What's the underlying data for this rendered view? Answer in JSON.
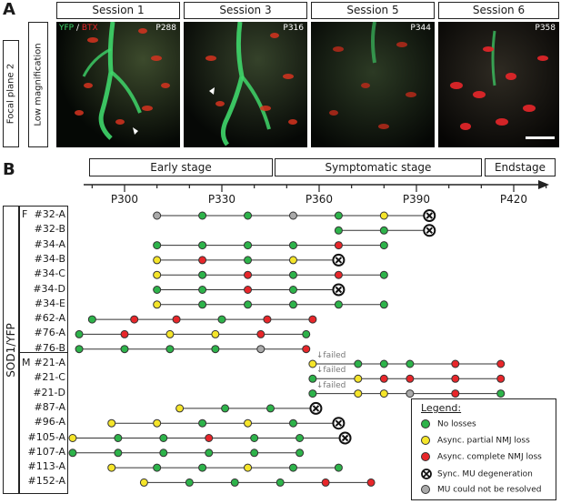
{
  "panel_a": {
    "letter": "A",
    "side_labels": [
      "Focal plane 2",
      "Low magnification"
    ],
    "stain_yfp": "YFP",
    "stain_sep": " / ",
    "stain_btx": "BTX",
    "sessions": [
      {
        "title": "Session 1",
        "age": "P288"
      },
      {
        "title": "Session 3",
        "age": "P316"
      },
      {
        "title": "Session 5",
        "age": "P344"
      },
      {
        "title": "Session 6",
        "age": "P358"
      }
    ]
  },
  "panel_b": {
    "letter": "B",
    "group_label": "SOD1/YFP",
    "stages": [
      "Early stage",
      "Symptomatic stage",
      "Endstage"
    ],
    "ticks": [
      "P300",
      "P330",
      "P360",
      "P390",
      "P420"
    ],
    "failed_label": "failed",
    "legend": {
      "title": "Legend:",
      "items": [
        {
          "label": "No losses",
          "color": "#2db34a"
        },
        {
          "label": "Async. partial NMJ loss",
          "color": "#f5e52a"
        },
        {
          "label": "Async. complete NMJ loss",
          "color": "#e8262a"
        },
        {
          "label": "Sync. MU degeneration",
          "color": "#ffffff"
        },
        {
          "label": "MU could not be resolved",
          "color": "#aaaaaa"
        }
      ]
    }
  },
  "chart_data": {
    "type": "scatter",
    "x_unit": "postnatal day",
    "xlim": [
      284,
      440
    ],
    "state_colors": {
      "G": "#2db34a",
      "Y": "#f5e52a",
      "R": "#e8262a",
      "X": "#ffffff",
      "N": "#aaaaaa"
    },
    "rows": [
      {
        "sex": "F",
        "label": "#32-A",
        "points": [
          [
            310,
            "N"
          ],
          [
            324,
            "G"
          ],
          [
            338,
            "G"
          ],
          [
            352,
            "N"
          ],
          [
            366,
            "G"
          ],
          [
            380,
            "Y"
          ],
          [
            394,
            "X"
          ]
        ]
      },
      {
        "label": "#32-B",
        "points": [
          [
            366,
            "G"
          ],
          [
            380,
            "G"
          ],
          [
            394,
            "X"
          ]
        ]
      },
      {
        "label": "#34-A",
        "points": [
          [
            310,
            "G"
          ],
          [
            324,
            "G"
          ],
          [
            338,
            "G"
          ],
          [
            352,
            "G"
          ],
          [
            366,
            "R"
          ],
          [
            380,
            "G"
          ]
        ]
      },
      {
        "label": "#34-B",
        "points": [
          [
            310,
            "Y"
          ],
          [
            324,
            "R"
          ],
          [
            338,
            "G"
          ],
          [
            352,
            "Y"
          ],
          [
            366,
            "X"
          ]
        ]
      },
      {
        "label": "#34-C",
        "points": [
          [
            310,
            "Y"
          ],
          [
            324,
            "G"
          ],
          [
            338,
            "R"
          ],
          [
            352,
            "G"
          ],
          [
            366,
            "R"
          ],
          [
            380,
            "G"
          ]
        ]
      },
      {
        "label": "#34-D",
        "points": [
          [
            310,
            "G"
          ],
          [
            324,
            "G"
          ],
          [
            338,
            "R"
          ],
          [
            352,
            "G"
          ],
          [
            366,
            "X"
          ]
        ]
      },
      {
        "label": "#34-E",
        "points": [
          [
            310,
            "Y"
          ],
          [
            324,
            "G"
          ],
          [
            338,
            "G"
          ],
          [
            352,
            "G"
          ],
          [
            366,
            "G"
          ],
          [
            380,
            "G"
          ]
        ]
      },
      {
        "label": "#62-A",
        "points": [
          [
            290,
            "G"
          ],
          [
            303,
            "R"
          ],
          [
            316,
            "R"
          ],
          [
            330,
            "G"
          ],
          [
            344,
            "R"
          ],
          [
            358,
            "R"
          ]
        ]
      },
      {
        "label": "#76-A",
        "points": [
          [
            286,
            "G"
          ],
          [
            300,
            "R"
          ],
          [
            314,
            "Y"
          ],
          [
            328,
            "Y"
          ],
          [
            342,
            "R"
          ],
          [
            356,
            "G"
          ]
        ]
      },
      {
        "label": "#76-B",
        "points": [
          [
            286,
            "G"
          ],
          [
            300,
            "G"
          ],
          [
            314,
            "G"
          ],
          [
            328,
            "G"
          ],
          [
            342,
            "N"
          ],
          [
            356,
            "R"
          ]
        ]
      },
      {
        "sex": "M",
        "label": "#21-A",
        "failed": 358,
        "points": [
          [
            358,
            "Y"
          ],
          [
            372,
            "G"
          ],
          [
            380,
            "G"
          ],
          [
            388,
            "G"
          ],
          [
            402,
            "R"
          ],
          [
            416,
            "R"
          ]
        ]
      },
      {
        "label": "#21-C",
        "failed": 358,
        "points": [
          [
            358,
            "G"
          ],
          [
            372,
            "Y"
          ],
          [
            380,
            "R"
          ],
          [
            388,
            "R"
          ],
          [
            402,
            "R"
          ],
          [
            416,
            "R"
          ]
        ]
      },
      {
        "label": "#21-D",
        "failed": 358,
        "points": [
          [
            358,
            "G"
          ],
          [
            372,
            "Y"
          ],
          [
            380,
            "Y"
          ],
          [
            388,
            "N"
          ],
          [
            402,
            "R"
          ],
          [
            416,
            "G"
          ]
        ]
      },
      {
        "label": "#87-A",
        "points": [
          [
            317,
            "Y"
          ],
          [
            331,
            "G"
          ],
          [
            345,
            "G"
          ],
          [
            359,
            "X"
          ]
        ]
      },
      {
        "label": "#96-A",
        "points": [
          [
            296,
            "Y"
          ],
          [
            310,
            "Y"
          ],
          [
            324,
            "G"
          ],
          [
            338,
            "Y"
          ],
          [
            352,
            "G"
          ],
          [
            366,
            "X"
          ]
        ]
      },
      {
        "label": "#105-A",
        "points": [
          [
            284,
            "Y"
          ],
          [
            298,
            "G"
          ],
          [
            312,
            "G"
          ],
          [
            326,
            "R"
          ],
          [
            340,
            "G"
          ],
          [
            354,
            "G"
          ],
          [
            368,
            "X"
          ]
        ]
      },
      {
        "label": "#107-A",
        "points": [
          [
            284,
            "G"
          ],
          [
            298,
            "G"
          ],
          [
            312,
            "G"
          ],
          [
            326,
            "G"
          ],
          [
            340,
            "G"
          ],
          [
            354,
            "G"
          ]
        ]
      },
      {
        "label": "#113-A",
        "points": [
          [
            296,
            "Y"
          ],
          [
            310,
            "G"
          ],
          [
            324,
            "G"
          ],
          [
            338,
            "Y"
          ],
          [
            352,
            "G"
          ],
          [
            366,
            "G"
          ]
        ]
      },
      {
        "label": "#152-A",
        "points": [
          [
            306,
            "Y"
          ],
          [
            320,
            "G"
          ],
          [
            334,
            "G"
          ],
          [
            348,
            "G"
          ],
          [
            362,
            "R"
          ],
          [
            376,
            "R"
          ]
        ]
      }
    ]
  }
}
